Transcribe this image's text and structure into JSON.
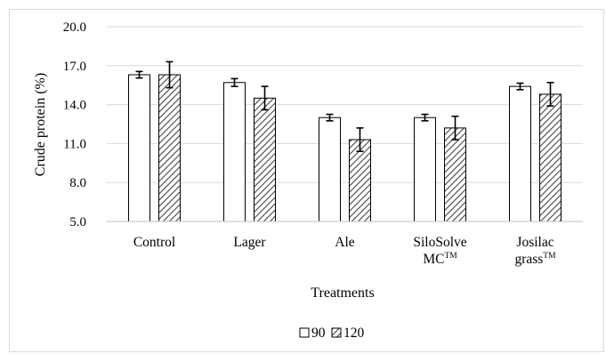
{
  "chart_data": {
    "type": "bar",
    "title": "",
    "xlabel": "Treatments",
    "ylabel": "Crude protein (%)",
    "ylim": [
      5.0,
      20.0
    ],
    "yticks": [
      "5.0",
      "8.0",
      "11.0",
      "14.0",
      "17.0",
      "20.0"
    ],
    "grid": true,
    "legend_position": "bottom",
    "categories": [
      {
        "line1": "Control",
        "line2": "",
        "sup": ""
      },
      {
        "line1": "Lager",
        "line2": "",
        "sup": ""
      },
      {
        "line1": "Ale",
        "line2": "",
        "sup": ""
      },
      {
        "line1": "SiloSolve",
        "line2": "MC",
        "sup": "TM"
      },
      {
        "line1": "Josilac",
        "line2": "grass",
        "sup": "TM"
      }
    ],
    "series": [
      {
        "name": "90",
        "style": "white",
        "values": [
          16.3,
          15.7,
          13.0,
          13.0,
          15.4
        ],
        "errors": [
          0.25,
          0.3,
          0.25,
          0.25,
          0.25
        ]
      },
      {
        "name": "120",
        "style": "hatched",
        "values": [
          16.3,
          14.5,
          11.3,
          12.2,
          14.8
        ],
        "errors": [
          1.0,
          0.9,
          0.9,
          0.9,
          0.9
        ]
      }
    ],
    "colors": {
      "bar_outline": "#000000",
      "grid": "#d9d9d9",
      "hatch": "#444444"
    }
  }
}
